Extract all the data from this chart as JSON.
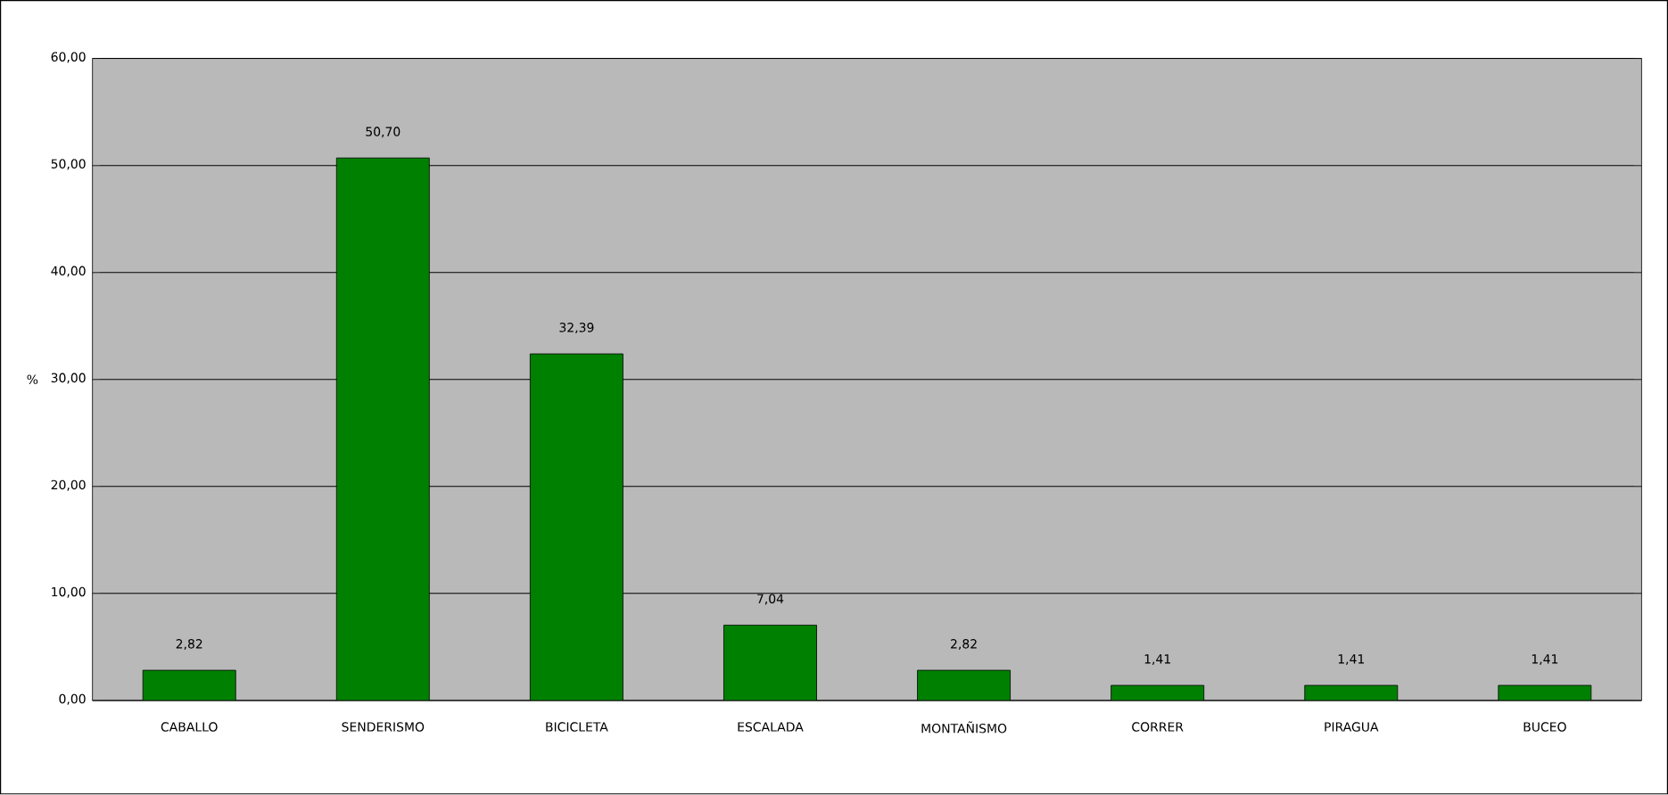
{
  "chart_data": {
    "type": "bar",
    "ylabel": "%",
    "categories": [
      "CABALLO",
      "SENDERISMO",
      "BICICLETA",
      "ESCALADA",
      "MONTAÑISMO",
      "CORRER",
      "PIRAGUA",
      "BUCEO"
    ],
    "values": [
      2.82,
      50.7,
      32.39,
      7.04,
      2.82,
      1.41,
      1.41,
      1.41
    ],
    "value_labels": [
      "2,82",
      "50,70",
      "32,39",
      "7,04",
      "2,82",
      "1,41",
      "1,41",
      "1,41"
    ],
    "color": "#008000",
    "ylim": [
      0,
      60
    ],
    "yticks": [
      {
        "value": 0,
        "label": "0,00"
      },
      {
        "value": 10,
        "label": "10,00"
      },
      {
        "value": 20,
        "label": "20,00"
      },
      {
        "value": 30,
        "label": "30,00"
      },
      {
        "value": 40,
        "label": "40,00"
      },
      {
        "value": 50,
        "label": "50,00"
      },
      {
        "value": 60,
        "label": "60,00"
      }
    ],
    "grid": "y"
  }
}
